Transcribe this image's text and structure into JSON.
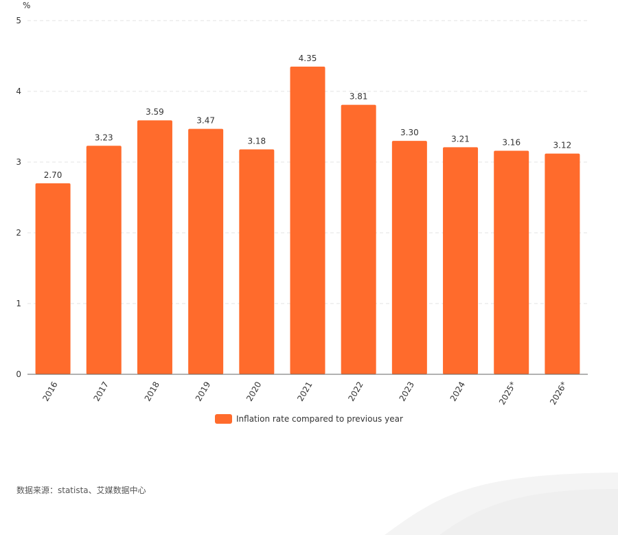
{
  "chart_data": {
    "type": "bar",
    "y_unit": "%",
    "categories": [
      "2016",
      "2017",
      "2018",
      "2019",
      "2020",
      "2021",
      "2022",
      "2023",
      "2024",
      "2025*",
      "2026*"
    ],
    "series": [
      {
        "name": "Inflation rate compared to previous year",
        "values": [
          2.7,
          3.23,
          3.59,
          3.47,
          3.18,
          4.35,
          3.81,
          3.3,
          3.21,
          3.16,
          3.12
        ],
        "value_labels": [
          "2.70",
          "3.23",
          "3.59",
          "3.47",
          "3.18",
          "4.35",
          "3.81",
          "3.30",
          "3.21",
          "3.16",
          "3.12"
        ]
      }
    ],
    "ylim": [
      0,
      5
    ],
    "yticks": [
      "0",
      "1",
      "2",
      "3",
      "4",
      "5"
    ],
    "grid": true,
    "legend_position": "bottom-center",
    "bar_color": "#FF6B2C"
  },
  "source_text": "数据来源：statista、艾媒数据中心"
}
